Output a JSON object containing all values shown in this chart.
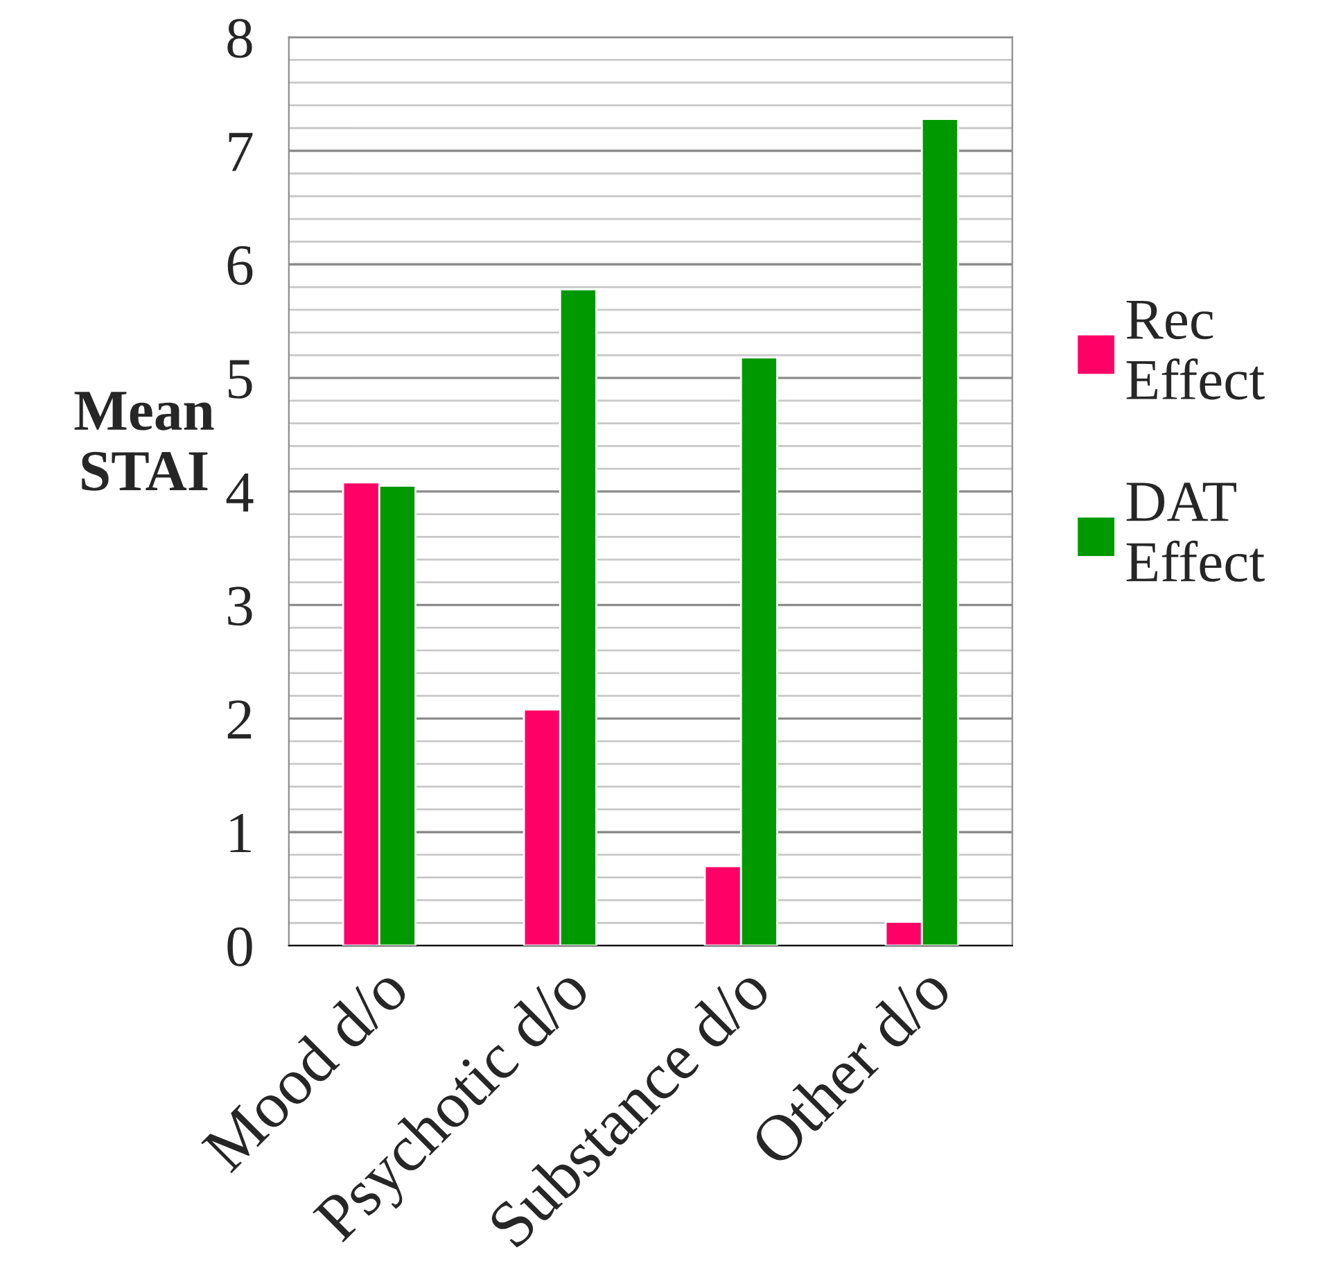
{
  "chart_data": {
    "type": "bar",
    "ylabel": "Mean\nSTAI",
    "categories": [
      "Mood d/o",
      "Psychotic d/o",
      "Substance d/o",
      "Other d/o"
    ],
    "series": [
      {
        "name": "Rec Effect",
        "color": "#ff0066",
        "values": [
          4.08,
          2.08,
          0.7,
          0.21
        ]
      },
      {
        "name": "DAT Effect",
        "color": "#009900",
        "values": [
          4.05,
          5.78,
          5.18,
          7.28
        ]
      }
    ],
    "ylim": [
      0,
      8
    ],
    "yticks": [
      0,
      1,
      2,
      3,
      4,
      5,
      6,
      7,
      8
    ],
    "grid": "y",
    "legend": "right"
  }
}
